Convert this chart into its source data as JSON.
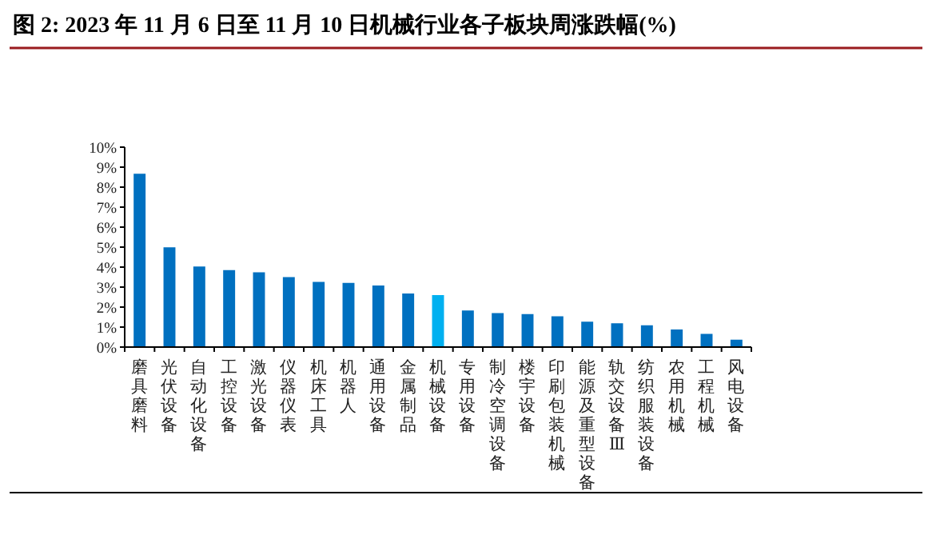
{
  "chart_data": {
    "type": "bar",
    "title": "图 2: 2023 年 11 月 6 日至 11 月 10 日机械行业各子板块周涨跌幅(%)",
    "categories": [
      "磨具磨料",
      "光伏设备",
      "自动化设备",
      "工控设备",
      "激光设备",
      "仪器仪表",
      "机床工具",
      "机器人",
      "通用设备",
      "金属制品",
      "机械设备",
      "专用设备",
      "制冷空调设备",
      "楼宇设备",
      "印刷包装机械",
      "能源及重型设备",
      "轨交设备Ⅲ",
      "纺织服装设备",
      "农用机械",
      "工程机械",
      "风电设备"
    ],
    "values": [
      8.67,
      4.99,
      4.03,
      3.85,
      3.74,
      3.5,
      3.26,
      3.21,
      3.08,
      2.68,
      2.6,
      1.83,
      1.7,
      1.65,
      1.54,
      1.27,
      1.19,
      1.09,
      0.88,
      0.66,
      0.37
    ],
    "colors": [
      "#0070c0",
      "#0070c0",
      "#0070c0",
      "#0070c0",
      "#0070c0",
      "#0070c0",
      "#0070c0",
      "#0070c0",
      "#0070c0",
      "#0070c0",
      "#00b0f0",
      "#0070c0",
      "#0070c0",
      "#0070c0",
      "#0070c0",
      "#0070c0",
      "#0070c0",
      "#0070c0",
      "#0070c0",
      "#0070c0",
      "#0070c0"
    ],
    "ylim": [
      0,
      10
    ],
    "yticks": [
      {
        "value": 0,
        "label": "0%"
      },
      {
        "value": 1,
        "label": "1%"
      },
      {
        "value": 2,
        "label": "2%"
      },
      {
        "value": 3,
        "label": "3%"
      },
      {
        "value": 4,
        "label": "4%"
      },
      {
        "value": 5,
        "label": "5%"
      },
      {
        "value": 6,
        "label": "6%"
      },
      {
        "value": 7,
        "label": "7%"
      },
      {
        "value": 8,
        "label": "8%"
      },
      {
        "value": 9,
        "label": "9%"
      },
      {
        "value": 10,
        "label": "10%"
      }
    ],
    "grid": false
  }
}
